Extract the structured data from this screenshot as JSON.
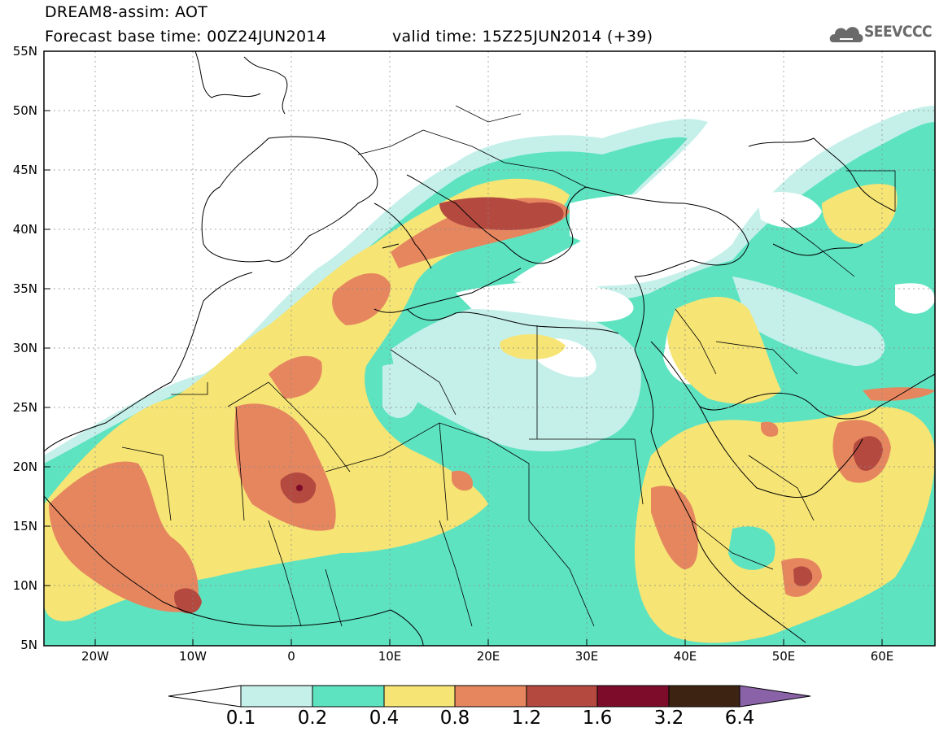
{
  "title": {
    "line1": "DREAM8-assim: AOT",
    "line2": "Forecast base time: 00Z24JUN2014",
    "valid": "valid time: 15Z25JUN2014 (+39)"
  },
  "logo": {
    "text": "SEEVCCC",
    "icon": "cloud-icon"
  },
  "map": {
    "lat_labels": [
      "55N",
      "50N",
      "45N",
      "40N",
      "35N",
      "30N",
      "25N",
      "20N",
      "15N",
      "10N",
      "5N"
    ],
    "lon_labels": [
      "20W",
      "10W",
      "0",
      "10E",
      "20E",
      "30E",
      "40E",
      "50E",
      "60E"
    ]
  },
  "colorbar": {
    "labels": [
      "0.1",
      "0.2",
      "0.4",
      "0.8",
      "1.2",
      "1.6",
      "3.2",
      "6.4"
    ],
    "colors": [
      "#ffffff",
      "#c5f0ea",
      "#5ee3c1",
      "#f6e475",
      "#e6865f",
      "#b4493f",
      "#7c0c2a",
      "#3d2412",
      "#8a62a8"
    ]
  },
  "legend_colors": {
    "land": "#ffffff",
    "very_low": "#c5f0ea",
    "low": "#5ee3c1",
    "moderate": "#f6e475",
    "high": "#e6865f",
    "very_high": "#b4493f",
    "extreme": "#7c0c2a"
  }
}
